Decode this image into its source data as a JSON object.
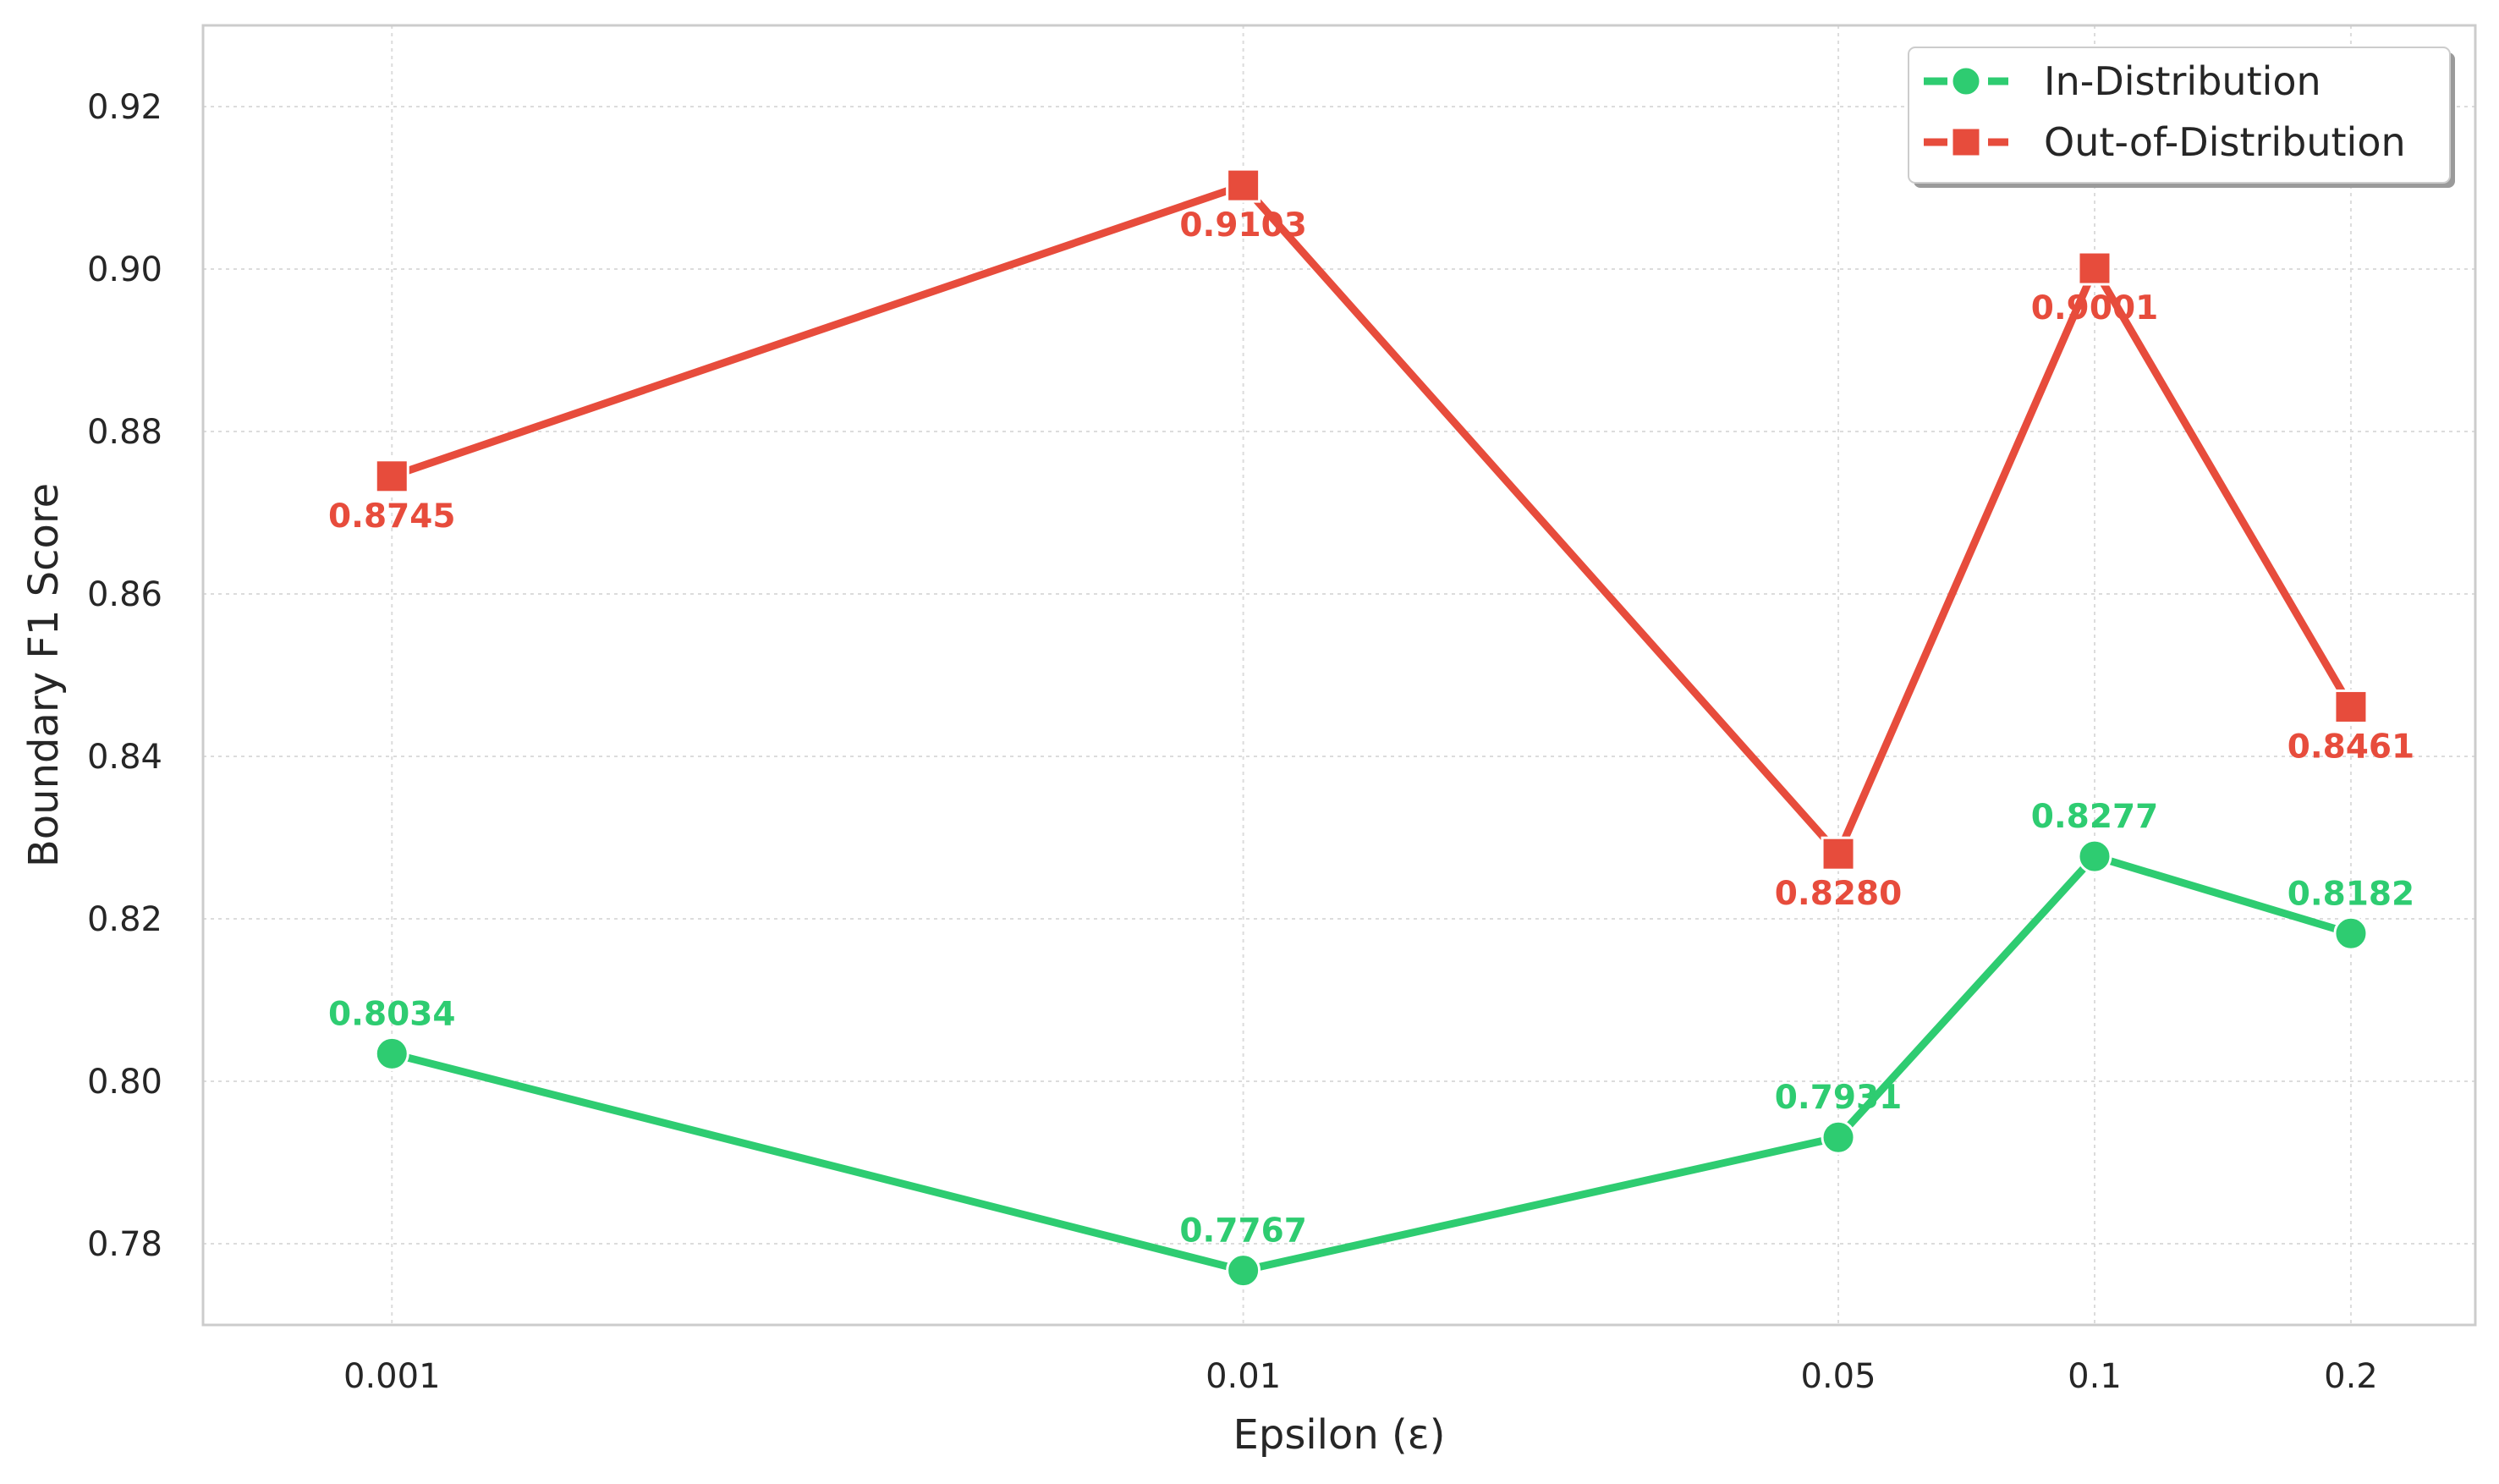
{
  "chart_data": {
    "type": "line",
    "title": "",
    "xlabel": "Epsilon (ε)",
    "ylabel": "Boundary F1 Score",
    "x_scale": "log",
    "categories": [
      "0.001",
      "0.01",
      "0.05",
      "0.1",
      "0.2"
    ],
    "x": [
      0.001,
      0.01,
      0.05,
      0.1,
      0.2
    ],
    "xlim": [
      0.0006,
      0.28
    ],
    "ylim": [
      0.77,
      0.93
    ],
    "yticks": [
      "0.78",
      "0.80",
      "0.82",
      "0.84",
      "0.86",
      "0.88",
      "0.90",
      "0.92"
    ],
    "ytick_values": [
      0.78,
      0.8,
      0.82,
      0.84,
      0.86,
      0.88,
      0.9,
      0.92
    ],
    "grid": true,
    "legend_position": "top-right",
    "series": [
      {
        "name": "In-Distribution",
        "color": "#2ecc71",
        "marker": "circle",
        "values": [
          0.8034,
          0.7767,
          0.7931,
          0.8277,
          0.8182
        ],
        "labels": [
          "0.8034",
          "0.7767",
          "0.7931",
          "0.8277",
          "0.8182"
        ],
        "label_placement": "above"
      },
      {
        "name": "Out-of-Distribution",
        "color": "#e74c3c",
        "marker": "square",
        "values": [
          0.8745,
          0.9103,
          0.828,
          0.9001,
          0.8461
        ],
        "labels": [
          "0.8745",
          "0.9103",
          "0.8280",
          "0.9001",
          "0.8461"
        ],
        "label_placement": "below"
      }
    ]
  }
}
